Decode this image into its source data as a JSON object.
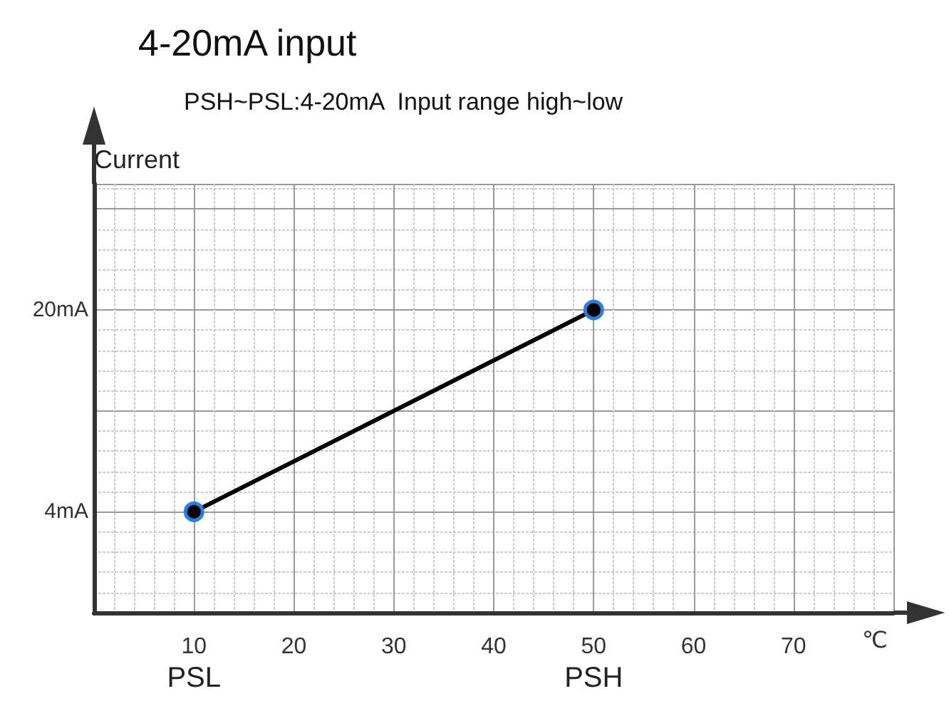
{
  "chart_data": {
    "type": "line",
    "title": "4-20mA input",
    "subtitle": "PSH~PSL:4-20mA  Input range high~low",
    "xlabel": "℃",
    "ylabel": "Current",
    "x": [
      10,
      50
    ],
    "series": [
      {
        "color": "#000000",
        "values": [
          4,
          20
        ]
      }
    ],
    "xlim": [
      0,
      80
    ],
    "xticks": [
      10,
      20,
      30,
      40,
      50,
      60,
      70
    ],
    "ylim": [
      -4,
      30
    ],
    "yticks": [
      {
        "value": 4,
        "label": "4mA"
      },
      {
        "value": 12,
        "label": null
      },
      {
        "value": 20,
        "label": "20mA"
      },
      {
        "value": 28,
        "label": null
      }
    ],
    "grid": true,
    "marker": "circle",
    "line_style": "solid",
    "annotations": [
      "PSL",
      "PSH"
    ]
  }
}
